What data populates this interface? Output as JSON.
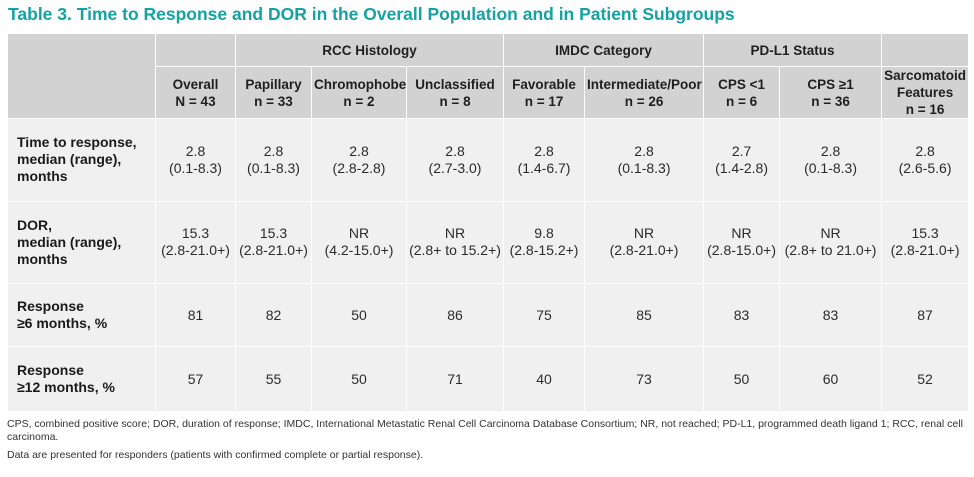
{
  "title": "Table 3. Time to Response and DOR in the Overall Population and in Patient Subgroups",
  "groups": {
    "rcc": "RCC Histology",
    "imdc": "IMDC Category",
    "pdl1": "PD-L1 Status"
  },
  "columns": [
    {
      "name": "Overall",
      "n": "N = 43"
    },
    {
      "name": "Papillary",
      "n": "n = 33"
    },
    {
      "name": "Chromophobe",
      "n": "n = 2"
    },
    {
      "name": "Unclassified",
      "n": "n = 8"
    },
    {
      "name": "Favorable",
      "n": "n = 17"
    },
    {
      "name": "Intermediate/Poor",
      "n": "n = 26"
    },
    {
      "name": "CPS <1",
      "n": "n = 6"
    },
    {
      "name": "CPS ≥1",
      "n": "n = 36"
    },
    {
      "name1": "Sarcomatoid",
      "name2": "Features",
      "n": "n = 16"
    }
  ],
  "rows": [
    {
      "label": [
        "Time to response,",
        "median (range),",
        "months"
      ],
      "cells": [
        [
          "2.8",
          "(0.1-8.3)"
        ],
        [
          "2.8",
          "(0.1-8.3)"
        ],
        [
          "2.8",
          "(2.8-2.8)"
        ],
        [
          "2.8",
          "(2.7-3.0)"
        ],
        [
          "2.8",
          "(1.4-6.7)"
        ],
        [
          "2.8",
          "(0.1-8.3)"
        ],
        [
          "2.7",
          "(1.4-2.8)"
        ],
        [
          "2.8",
          "(0.1-8.3)"
        ],
        [
          "2.8",
          "(2.6-5.6)"
        ]
      ]
    },
    {
      "label": [
        "DOR,",
        "median (range),",
        "months"
      ],
      "cells": [
        [
          "15.3",
          "(2.8-21.0+)"
        ],
        [
          "15.3",
          "(2.8-21.0+)"
        ],
        [
          "NR",
          "(4.2-15.0+)"
        ],
        [
          "NR",
          "(2.8+ to 15.2+)"
        ],
        [
          "9.8",
          "(2.8-15.2+)"
        ],
        [
          "NR",
          "(2.8-21.0+)"
        ],
        [
          "NR",
          "(2.8-15.0+)"
        ],
        [
          "NR",
          "(2.8+ to 21.0+)"
        ],
        [
          "15.3",
          "(2.8-21.0+)"
        ]
      ]
    },
    {
      "label": [
        "Response",
        "≥6 months, %"
      ],
      "cells": [
        [
          "81"
        ],
        [
          "82"
        ],
        [
          "50"
        ],
        [
          "86"
        ],
        [
          "75"
        ],
        [
          "85"
        ],
        [
          "83"
        ],
        [
          "83"
        ],
        [
          "87"
        ]
      ]
    },
    {
      "label": [
        "Response",
        "≥12 months, %"
      ],
      "cells": [
        [
          "57"
        ],
        [
          "55"
        ],
        [
          "50"
        ],
        [
          "71"
        ],
        [
          "40"
        ],
        [
          "73"
        ],
        [
          "50"
        ],
        [
          "60"
        ],
        [
          "52"
        ]
      ]
    }
  ],
  "footnotes": [
    "CPS, combined positive score; DOR, duration of response; IMDC, International Metastatic Renal Cell Carcinoma Database Consortium; NR, not reached; PD-L1, programmed death ligand 1; RCC, renal cell carcinoma.",
    "Data are presented for responders (patients with confirmed complete or partial response)."
  ]
}
